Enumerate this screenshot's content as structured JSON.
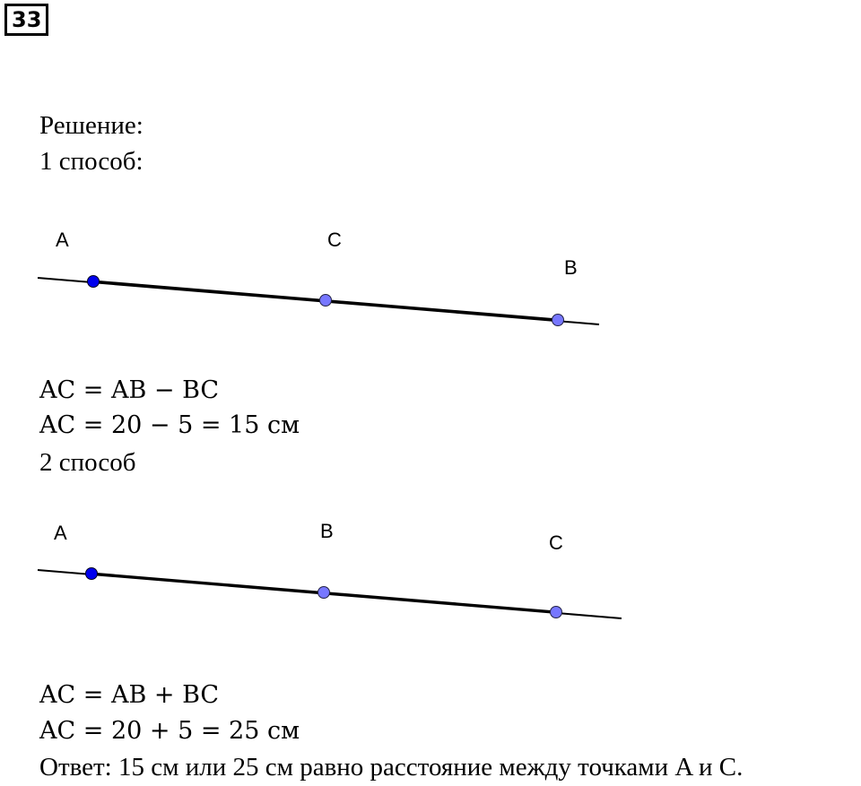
{
  "problem_number": "33",
  "solution_heading": "Решение:",
  "method1": {
    "title": "1 способ:",
    "figure": {
      "labels": [
        "A",
        "C",
        "B"
      ]
    },
    "eq1": "AC = AB − BC",
    "eq2": "AC = 20 − 5 = 15 см"
  },
  "method2": {
    "title": "2 способ",
    "figure": {
      "labels": [
        "A",
        "B",
        "C"
      ]
    },
    "eq1": "AC = AB + BC",
    "eq2": "AC = 20 + 5 = 25 см"
  },
  "answer": "Ответ: 15 см или 25 см равно расстояние между точками A и C.",
  "colors": {
    "point_dark": "#0000ee",
    "point_light": "#7777ff",
    "line": "#000000"
  }
}
